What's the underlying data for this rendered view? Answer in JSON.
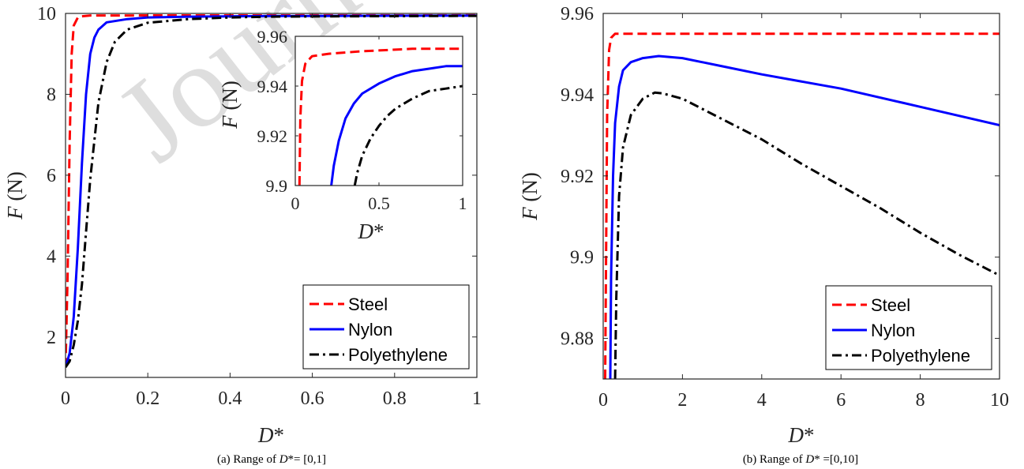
{
  "colors": {
    "steel": "#ff0000",
    "nylon": "#0000ff",
    "polyethylene": "#000000"
  },
  "watermark": "Journ",
  "legend": {
    "labels": [
      "Steel",
      "Nylon",
      "Polyethylene"
    ],
    "placement": "bottom-right"
  },
  "chart_data": [
    {
      "id": "a",
      "type": "line",
      "xlabel_main": "D",
      "xlabel_sup": "*",
      "ylabel_italic": "F",
      "ylabel_unit": " (N)",
      "xlim": [
        0,
        1
      ],
      "ylim": [
        1,
        10
      ],
      "xticks": [
        0,
        0.2,
        0.4,
        0.6,
        0.8,
        1
      ],
      "xtick_labels": [
        "0",
        "0.2",
        "0.4",
        "0.6",
        "0.8",
        "1"
      ],
      "yticks": [
        2,
        4,
        6,
        8,
        10
      ],
      "ytick_labels": [
        "2",
        "4",
        "6",
        "8",
        "10"
      ],
      "grid": false,
      "caption": {
        "pre": "(a) Range of ",
        "italic": "D",
        "post": "*= [0,1]"
      },
      "series": [
        {
          "name": "Steel",
          "style": "dashed",
          "x": [
            0,
            0.005,
            0.01,
            0.015,
            0.02,
            0.03,
            0.04,
            0.06,
            1
          ],
          "y": [
            1.25,
            3.5,
            6.8,
            9.0,
            9.7,
            9.9,
            9.93,
            9.95,
            9.955
          ]
        },
        {
          "name": "Nylon",
          "style": "solid",
          "x": [
            0,
            0.01,
            0.02,
            0.03,
            0.04,
            0.05,
            0.06,
            0.07,
            0.08,
            0.1,
            0.15,
            0.2,
            0.3,
            0.5,
            1
          ],
          "y": [
            1.25,
            1.6,
            2.5,
            4.2,
            6.3,
            8.0,
            9.0,
            9.4,
            9.6,
            9.78,
            9.86,
            9.9,
            9.92,
            9.935,
            9.948
          ]
        },
        {
          "name": "Polyethylene",
          "style": "dashdot",
          "x": [
            0,
            0.01,
            0.02,
            0.03,
            0.04,
            0.05,
            0.06,
            0.08,
            0.1,
            0.12,
            0.15,
            0.2,
            0.3,
            0.4,
            0.5,
            0.7,
            1
          ],
          "y": [
            1.25,
            1.4,
            1.8,
            2.4,
            3.3,
            4.6,
            5.9,
            7.8,
            8.8,
            9.3,
            9.6,
            9.77,
            9.86,
            9.9,
            9.92,
            9.93,
            9.94
          ]
        }
      ],
      "inset": {
        "xlim": [
          0,
          1
        ],
        "ylim": [
          9.9,
          9.96
        ],
        "xticks": [
          0,
          0.5,
          1
        ],
        "xtick_labels": [
          "0",
          "0.5",
          "1"
        ],
        "yticks": [
          9.9,
          9.92,
          9.94,
          9.96
        ],
        "ytick_labels": [
          "9.9",
          "9.92",
          "9.94",
          "9.96"
        ],
        "series": [
          {
            "name": "Steel",
            "x": [
              0.025,
              0.03,
              0.04,
              0.06,
              0.1,
              0.2,
              0.4,
              0.7,
              1
            ],
            "y": [
              9.9,
              9.927,
              9.942,
              9.949,
              9.952,
              9.953,
              9.954,
              9.955,
              9.955
            ]
          },
          {
            "name": "Nylon",
            "x": [
              0.215,
              0.23,
              0.26,
              0.3,
              0.35,
              0.4,
              0.5,
              0.6,
              0.7,
              0.8,
              0.9,
              1
            ],
            "y": [
              9.9,
              9.908,
              9.918,
              9.927,
              9.933,
              9.937,
              9.941,
              9.944,
              9.946,
              9.947,
              9.948,
              9.948
            ]
          },
          {
            "name": "Polyethylene",
            "x": [
              0.355,
              0.37,
              0.4,
              0.45,
              0.5,
              0.55,
              0.6,
              0.7,
              0.8,
              0.9,
              1
            ],
            "y": [
              9.9,
              9.905,
              9.912,
              9.919,
              9.924,
              9.928,
              9.931,
              9.935,
              9.938,
              9.939,
              9.94
            ]
          }
        ]
      }
    },
    {
      "id": "b",
      "type": "line",
      "xlabel_main": "D",
      "xlabel_sup": "*",
      "ylabel_italic": "F",
      "ylabel_unit": " (N)",
      "xlim": [
        0,
        10
      ],
      "ylim": [
        9.87,
        9.96
      ],
      "xticks": [
        0,
        2,
        4,
        6,
        8,
        10
      ],
      "xtick_labels": [
        "0",
        "2",
        "4",
        "6",
        "8",
        "10"
      ],
      "yticks": [
        9.88,
        9.9,
        9.92,
        9.94,
        9.96
      ],
      "ytick_labels": [
        "9.88",
        "9.9",
        "9.92",
        "9.94",
        "9.96"
      ],
      "grid": false,
      "caption": {
        "pre": "(b) Range of ",
        "italic": "D",
        "post": "* =[0,10]"
      },
      "series": [
        {
          "name": "Steel",
          "style": "dashed",
          "x": [
            0.05,
            0.1,
            0.15,
            0.2,
            0.3,
            0.5,
            1,
            10
          ],
          "y": [
            9.87,
            9.935,
            9.951,
            9.954,
            9.955,
            9.955,
            9.955,
            9.955
          ]
        },
        {
          "name": "Nylon",
          "style": "solid",
          "x": [
            0.18,
            0.2,
            0.25,
            0.3,
            0.4,
            0.5,
            0.7,
            1,
            1.4,
            2,
            3,
            4,
            6,
            8,
            10
          ],
          "y": [
            9.87,
            9.895,
            9.92,
            9.933,
            9.942,
            9.946,
            9.948,
            9.949,
            9.9495,
            9.949,
            9.947,
            9.945,
            9.9415,
            9.937,
            9.9325
          ]
        },
        {
          "name": "Polyethylene",
          "style": "dashdot",
          "x": [
            0.3,
            0.33,
            0.4,
            0.5,
            0.7,
            1,
            1.3,
            1.5,
            2,
            3,
            4,
            5,
            6,
            7,
            8,
            9,
            10
          ],
          "y": [
            9.87,
            9.89,
            9.915,
            9.927,
            9.935,
            9.939,
            9.9405,
            9.9403,
            9.939,
            9.934,
            9.929,
            9.923,
            9.9175,
            9.912,
            9.906,
            9.9005,
            9.8955
          ]
        }
      ]
    }
  ]
}
